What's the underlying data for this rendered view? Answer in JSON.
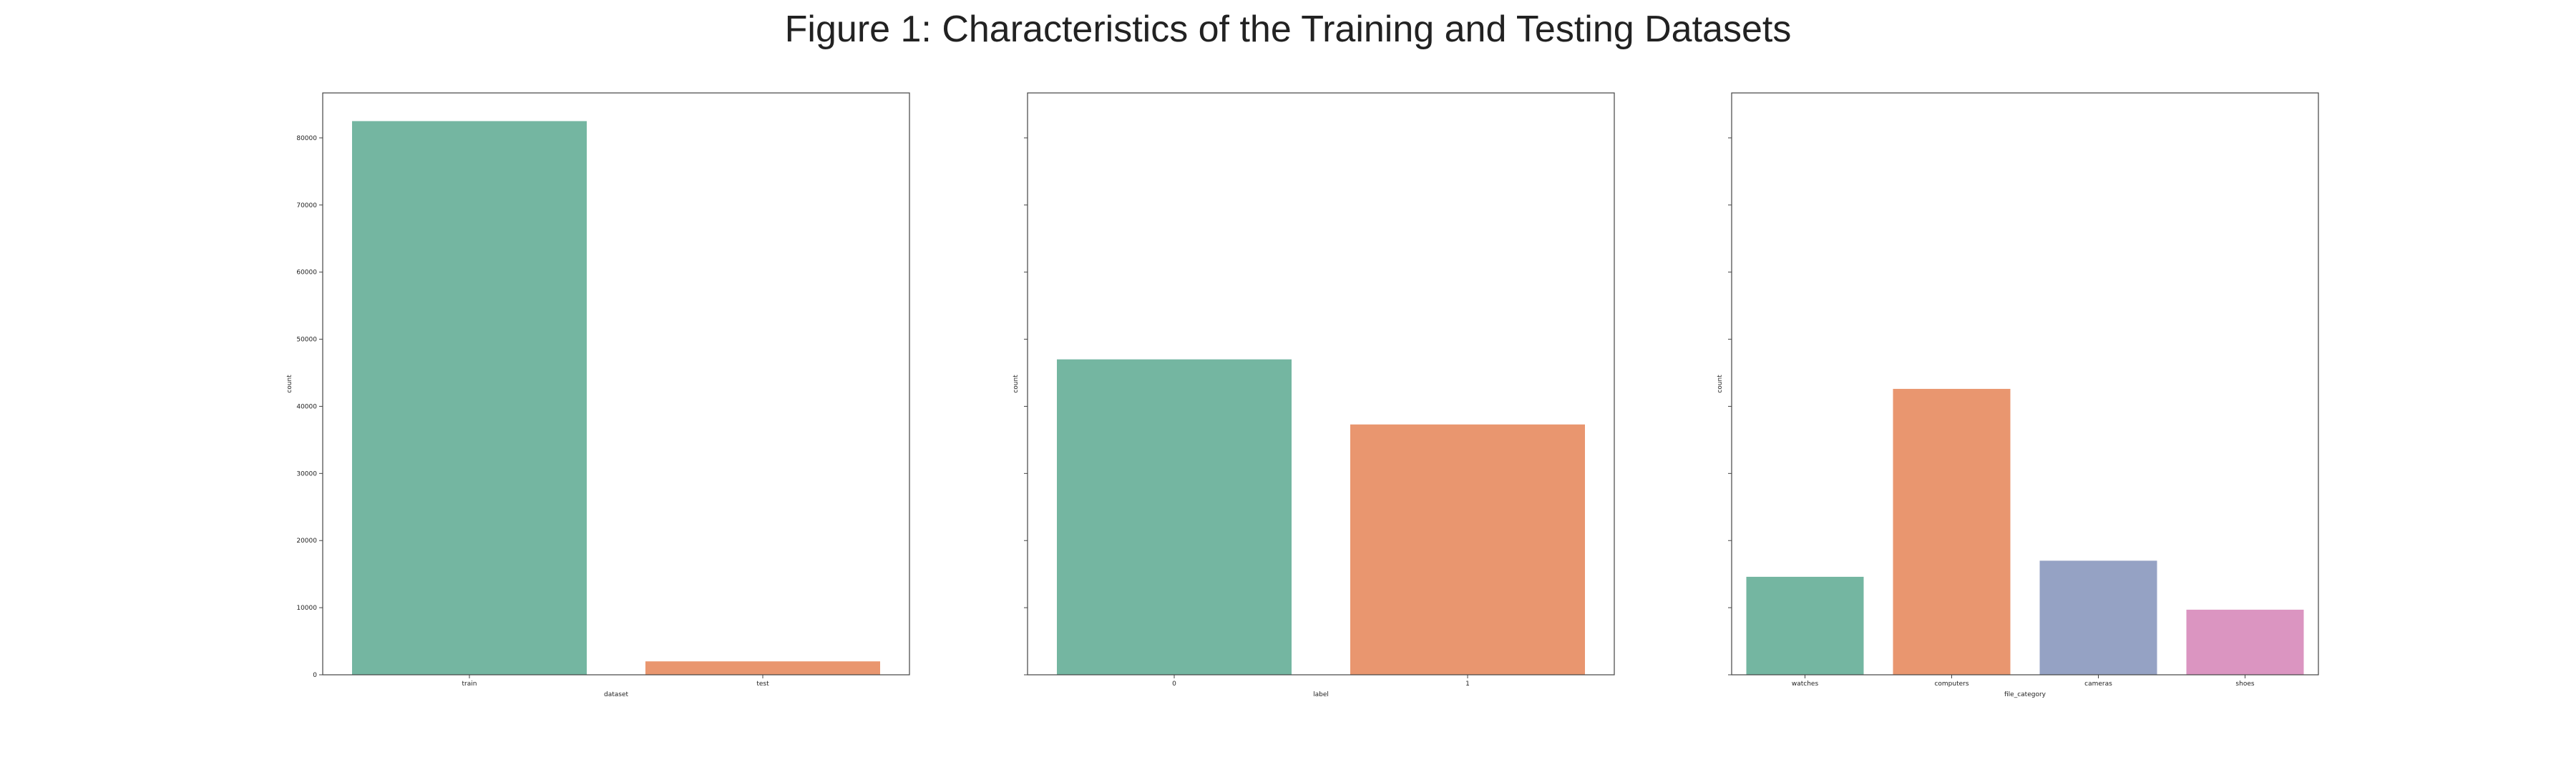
{
  "figure": {
    "title": "Figure 1: Characteristics of the Training and Testing Datasets"
  },
  "chart_data": [
    {
      "type": "bar",
      "categories": [
        "train",
        "test"
      ],
      "values": [
        82500,
        2000
      ],
      "colors": [
        "#74b6a1",
        "#e9966f"
      ],
      "xlabel": "dataset",
      "ylabel": "count",
      "ylim": [
        0,
        86700
      ],
      "yticks": [
        0,
        10000,
        20000,
        30000,
        40000,
        50000,
        60000,
        70000,
        80000
      ],
      "show_ytick_labels": true,
      "grid": false
    },
    {
      "type": "bar",
      "categories": [
        "0",
        "1"
      ],
      "values": [
        47000,
        37300
      ],
      "colors": [
        "#74b6a1",
        "#e9966f"
      ],
      "xlabel": "label",
      "ylabel": "count",
      "ylim": [
        0,
        86700
      ],
      "yticks": [
        0,
        10000,
        20000,
        30000,
        40000,
        50000,
        60000,
        70000,
        80000
      ],
      "show_ytick_labels": false,
      "grid": false
    },
    {
      "type": "bar",
      "categories": [
        "watches",
        "computers",
        "cameras",
        "shoes"
      ],
      "values": [
        14600,
        42600,
        17000,
        9700
      ],
      "colors": [
        "#74b6a1",
        "#e9966f",
        "#95a2c4",
        "#db95c1"
      ],
      "xlabel": "file_category",
      "ylabel": "count",
      "ylim": [
        0,
        86700
      ],
      "yticks": [
        0,
        10000,
        20000,
        30000,
        40000,
        50000,
        60000,
        70000,
        80000
      ],
      "show_ytick_labels": false,
      "grid": false
    }
  ]
}
